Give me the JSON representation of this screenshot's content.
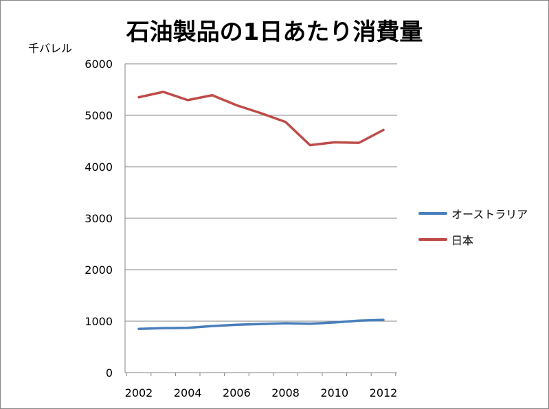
{
  "chart_data": {
    "type": "line",
    "title": "石油製品の1日あたり消費量",
    "ylabel": "千バレル",
    "xlabel": "",
    "x": [
      2002,
      2003,
      2004,
      2005,
      2006,
      2007,
      2008,
      2009,
      2010,
      2011,
      2012
    ],
    "x_tick_labels": [
      "2002",
      "2004",
      "2006",
      "2008",
      "2010",
      "2012"
    ],
    "y_tick_labels": [
      "0",
      "1000",
      "2000",
      "3000",
      "4000",
      "5000",
      "6000"
    ],
    "ylim": [
      0,
      6000
    ],
    "grid": "horizontal",
    "legend_position": "right",
    "series": [
      {
        "name": "オーストラリア",
        "color": "#4a7ebb",
        "values": [
          850,
          865,
          870,
          905,
          930,
          945,
          960,
          950,
          975,
          1010,
          1025
        ]
      },
      {
        "name": "日本",
        "color": "#be4b48",
        "values": [
          5350,
          5455,
          5295,
          5390,
          5195,
          5040,
          4870,
          4420,
          4475,
          4465,
          4715
        ]
      }
    ]
  }
}
